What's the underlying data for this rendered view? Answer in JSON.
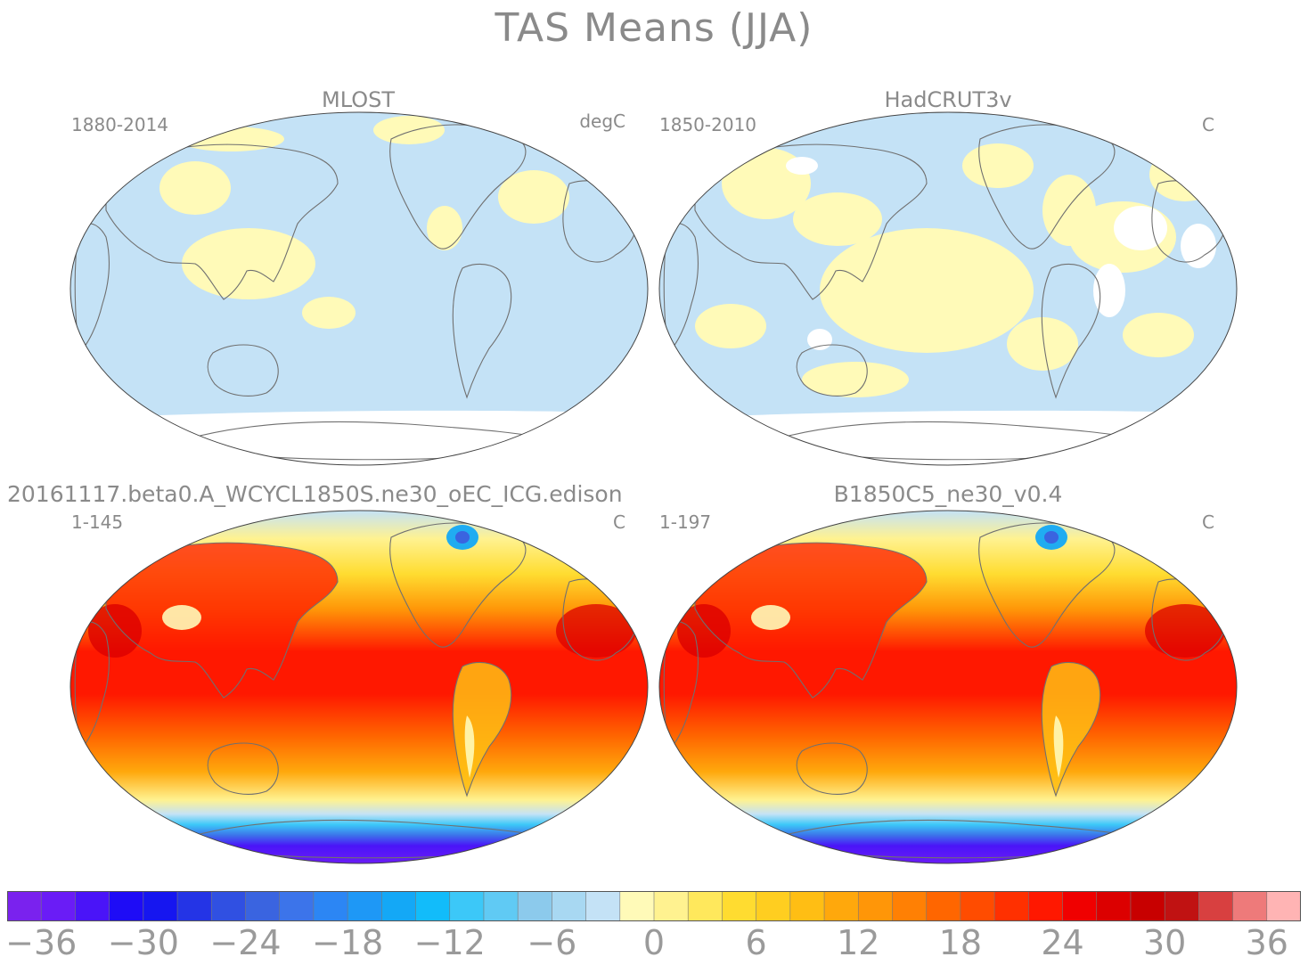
{
  "title": "TAS Means (JJA)",
  "panels": [
    {
      "name": "MLOST",
      "years": "1880-2014",
      "units": "degC",
      "kind": "diff"
    },
    {
      "name": "HadCRUT3v",
      "years": "1850-2010",
      "units": "C",
      "kind": "diff"
    },
    {
      "name": "20161117.beta0.A_WCYCL1850S.ne30_oEC_ICG.edison",
      "years": "1-145",
      "units": "C",
      "kind": "abs"
    },
    {
      "name": "B1850C5_ne30_v0.4",
      "years": "1-197",
      "units": "C",
      "kind": "abs"
    }
  ],
  "colorbar": {
    "labels": [
      "−36",
      "−30",
      "−24",
      "−18",
      "−12",
      "−6",
      "0",
      "6",
      "12",
      "18",
      "24",
      "30",
      "36"
    ],
    "colors": [
      "#7a22ee",
      "#6a1cf6",
      "#4a14f8",
      "#1e0cf6",
      "#1616f0",
      "#2434e6",
      "#3050e2",
      "#3a64e0",
      "#3c74ea",
      "#2c86f4",
      "#1e98f6",
      "#14a8f6",
      "#12bcfa",
      "#3cc8f8",
      "#60caf4",
      "#8ccaec",
      "#a8d8f2",
      "#c4e2f6",
      "#fffab8",
      "#fff290",
      "#ffe85c",
      "#ffdc30",
      "#ffce20",
      "#ffbe14",
      "#ffa80c",
      "#ff9608",
      "#ff8004",
      "#ff6600",
      "#ff4c00",
      "#ff3000",
      "#ff1800",
      "#f00000",
      "#dc0000",
      "#c80000",
      "#c01212",
      "#d84040",
      "#ee7a7a",
      "#ffb4b4"
    ]
  }
}
